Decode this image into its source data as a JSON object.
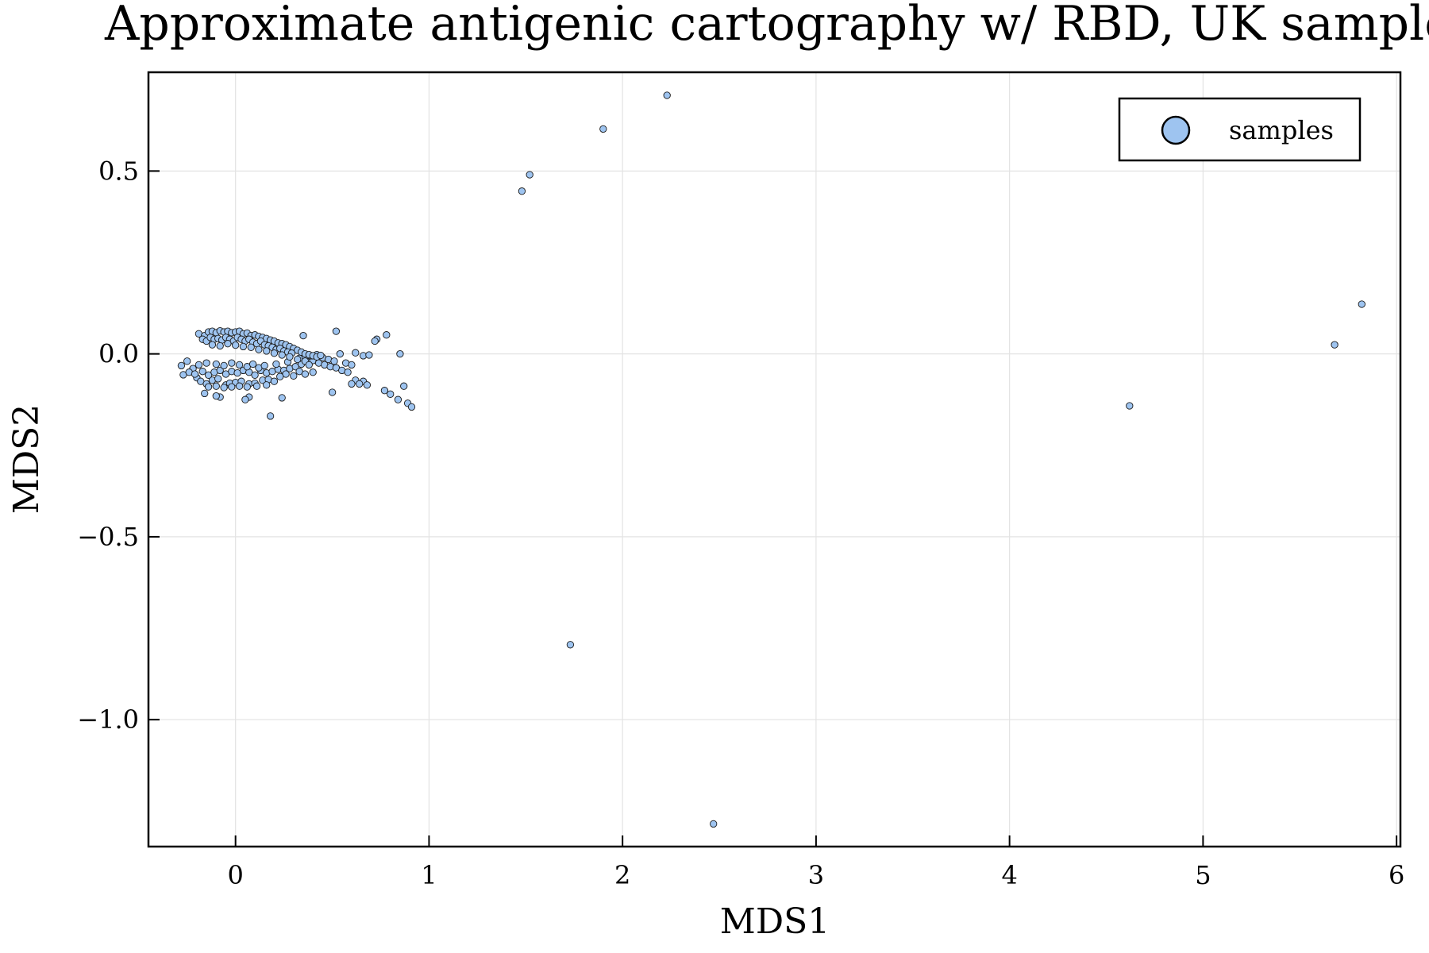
{
  "chart_data": {
    "type": "scatter",
    "title": "Approximate antigenic cartography w/ RBD, UK samples",
    "xlabel": "MDS1",
    "ylabel": "MDS2",
    "xlim": [
      -0.45,
      6.02
    ],
    "ylim": [
      -1.347,
      0.77
    ],
    "xticks": [
      0,
      1,
      2,
      3,
      4,
      5,
      6
    ],
    "xtick_labels": [
      "0",
      "1",
      "2",
      "3",
      "4",
      "5",
      "6"
    ],
    "yticks": [
      0.5,
      0.0,
      -0.5,
      -1.0
    ],
    "ytick_labels": [
      "0.5",
      "0.0",
      "−0.5",
      "−1.0"
    ],
    "grid": true,
    "legend_position": "top-right",
    "series": [
      {
        "name": "samples",
        "color": "#9ec4f0",
        "points": [
          [
            2.23,
            0.707
          ],
          [
            1.9,
            0.615
          ],
          [
            1.52,
            0.49
          ],
          [
            1.48,
            0.445
          ],
          [
            5.82,
            0.136
          ],
          [
            5.68,
            0.025
          ],
          [
            4.62,
            -0.142
          ],
          [
            1.73,
            -0.795
          ],
          [
            2.47,
            -1.285
          ],
          [
            0.35,
            0.05
          ],
          [
            0.52,
            0.062
          ],
          [
            0.78,
            0.052
          ],
          [
            0.73,
            0.04
          ],
          [
            0.72,
            0.035
          ],
          [
            0.85,
            0.0
          ],
          [
            0.62,
            0.003
          ],
          [
            0.66,
            -0.005
          ],
          [
            0.69,
            -0.003
          ],
          [
            0.87,
            -0.088
          ],
          [
            0.89,
            -0.135
          ],
          [
            0.91,
            -0.145
          ],
          [
            0.84,
            -0.125
          ],
          [
            0.8,
            -0.11
          ],
          [
            0.77,
            -0.1
          ],
          [
            0.66,
            -0.075
          ],
          [
            0.62,
            -0.072
          ],
          [
            0.64,
            -0.082
          ],
          [
            0.68,
            -0.085
          ],
          [
            0.6,
            -0.082
          ],
          [
            0.5,
            -0.105
          ],
          [
            0.18,
            -0.17
          ],
          [
            0.24,
            -0.12
          ],
          [
            0.07,
            -0.118
          ],
          [
            0.05,
            -0.125
          ],
          [
            -0.08,
            -0.118
          ],
          [
            -0.1,
            -0.115
          ],
          [
            -0.16,
            -0.108
          ],
          [
            -0.28,
            -0.032
          ],
          [
            -0.27,
            -0.057
          ],
          [
            -0.25,
            -0.02
          ],
          [
            -0.22,
            -0.04
          ],
          [
            -0.2,
            -0.065
          ],
          [
            -0.18,
            -0.075
          ],
          [
            -0.15,
            -0.082
          ],
          [
            -0.12,
            -0.072
          ],
          [
            -0.09,
            -0.068
          ],
          [
            -0.05,
            -0.085
          ],
          [
            -0.03,
            -0.08
          ],
          [
            0.0,
            -0.078
          ],
          [
            0.03,
            -0.075
          ],
          [
            0.07,
            -0.082
          ],
          [
            0.1,
            -0.08
          ],
          [
            0.14,
            -0.072
          ],
          [
            0.17,
            -0.07
          ],
          [
            0.2,
            -0.075
          ],
          [
            -0.24,
            -0.05
          ],
          [
            -0.21,
            -0.055
          ],
          [
            -0.17,
            -0.048
          ],
          [
            -0.14,
            -0.058
          ],
          [
            -0.11,
            -0.05
          ],
          [
            -0.08,
            -0.045
          ],
          [
            -0.05,
            -0.055
          ],
          [
            -0.02,
            -0.048
          ],
          [
            0.01,
            -0.052
          ],
          [
            0.04,
            -0.045
          ],
          [
            0.07,
            -0.05
          ],
          [
            0.1,
            -0.058
          ],
          [
            0.13,
            -0.045
          ],
          [
            0.16,
            -0.052
          ],
          [
            0.19,
            -0.048
          ],
          [
            0.22,
            -0.042
          ],
          [
            0.25,
            -0.045
          ],
          [
            0.28,
            -0.04
          ],
          [
            0.31,
            -0.035
          ],
          [
            0.34,
            -0.028
          ],
          [
            0.37,
            -0.022
          ],
          [
            0.4,
            -0.018
          ],
          [
            0.43,
            -0.025
          ],
          [
            0.46,
            -0.03
          ],
          [
            0.49,
            -0.035
          ],
          [
            0.52,
            -0.038
          ],
          [
            0.55,
            -0.045
          ],
          [
            0.58,
            -0.05
          ],
          [
            -0.19,
            -0.03
          ],
          [
            -0.15,
            -0.025
          ],
          [
            -0.1,
            -0.028
          ],
          [
            -0.06,
            -0.032
          ],
          [
            -0.02,
            -0.025
          ],
          [
            0.02,
            -0.03
          ],
          [
            0.06,
            -0.035
          ],
          [
            0.09,
            -0.028
          ],
          [
            0.12,
            -0.038
          ],
          [
            0.15,
            -0.032
          ],
          [
            0.21,
            -0.028
          ],
          [
            0.27,
            -0.022
          ],
          [
            0.33,
            -0.012
          ],
          [
            0.36,
            -0.008
          ],
          [
            0.39,
            -0.005
          ],
          [
            0.42,
            -0.002
          ],
          [
            0.45,
            -0.01
          ],
          [
            0.48,
            -0.015
          ],
          [
            0.51,
            -0.02
          ],
          [
            0.54,
            0.0
          ],
          [
            0.57,
            -0.025
          ],
          [
            0.6,
            -0.03
          ],
          [
            -0.19,
            0.055
          ],
          [
            -0.16,
            0.05
          ],
          [
            -0.14,
            0.06
          ],
          [
            -0.12,
            0.062
          ],
          [
            -0.1,
            0.058
          ],
          [
            -0.08,
            0.063
          ],
          [
            -0.06,
            0.06
          ],
          [
            -0.04,
            0.062
          ],
          [
            -0.02,
            0.058
          ],
          [
            0.0,
            0.06
          ],
          [
            0.02,
            0.062
          ],
          [
            0.04,
            0.055
          ],
          [
            0.06,
            0.057
          ],
          [
            0.08,
            0.05
          ],
          [
            0.1,
            0.052
          ],
          [
            0.12,
            0.048
          ],
          [
            0.14,
            0.045
          ],
          [
            0.16,
            0.042
          ],
          [
            0.18,
            0.038
          ],
          [
            0.2,
            0.035
          ],
          [
            0.22,
            0.03
          ],
          [
            0.24,
            0.028
          ],
          [
            0.26,
            0.025
          ],
          [
            0.28,
            0.02
          ],
          [
            0.3,
            0.015
          ],
          [
            0.32,
            0.01
          ],
          [
            0.34,
            0.005
          ],
          [
            0.36,
            0.0
          ],
          [
            0.38,
            -0.002
          ],
          [
            0.4,
            -0.005
          ],
          [
            0.42,
            -0.008
          ],
          [
            0.44,
            -0.004
          ],
          [
            -0.17,
            0.04
          ],
          [
            -0.15,
            0.035
          ],
          [
            -0.13,
            0.045
          ],
          [
            -0.11,
            0.04
          ],
          [
            -0.09,
            0.042
          ],
          [
            -0.07,
            0.038
          ],
          [
            -0.05,
            0.045
          ],
          [
            -0.03,
            0.04
          ],
          [
            -0.01,
            0.035
          ],
          [
            0.01,
            0.045
          ],
          [
            0.03,
            0.04
          ],
          [
            0.05,
            0.035
          ],
          [
            0.07,
            0.04
          ],
          [
            0.09,
            0.032
          ],
          [
            0.11,
            0.028
          ],
          [
            0.13,
            0.035
          ],
          [
            0.15,
            0.025
          ],
          [
            0.17,
            0.022
          ],
          [
            0.19,
            0.018
          ],
          [
            0.21,
            0.012
          ],
          [
            0.23,
            0.015
          ],
          [
            0.25,
            0.008
          ],
          [
            0.27,
            0.005
          ],
          [
            0.29,
            0.002
          ],
          [
            -0.12,
            0.025
          ],
          [
            -0.08,
            0.022
          ],
          [
            -0.04,
            0.028
          ],
          [
            0.0,
            0.024
          ],
          [
            0.04,
            0.02
          ],
          [
            0.08,
            0.018
          ],
          [
            0.12,
            0.012
          ],
          [
            0.16,
            0.008
          ],
          [
            0.2,
            0.002
          ],
          [
            0.24,
            -0.003
          ],
          [
            0.28,
            -0.008
          ],
          [
            0.32,
            -0.015
          ],
          [
            0.36,
            -0.02
          ],
          [
            0.38,
            -0.03
          ],
          [
            0.33,
            -0.048
          ],
          [
            0.36,
            -0.055
          ],
          [
            0.4,
            -0.05
          ],
          [
            0.26,
            -0.055
          ],
          [
            0.23,
            -0.062
          ],
          [
            0.3,
            -0.06
          ],
          [
            -0.1,
            -0.088
          ],
          [
            -0.06,
            -0.092
          ],
          [
            -0.02,
            -0.09
          ],
          [
            0.02,
            -0.088
          ],
          [
            0.06,
            -0.09
          ],
          [
            0.11,
            -0.088
          ],
          [
            -0.14,
            -0.09
          ],
          [
            0.16,
            -0.085
          ]
        ]
      }
    ]
  }
}
